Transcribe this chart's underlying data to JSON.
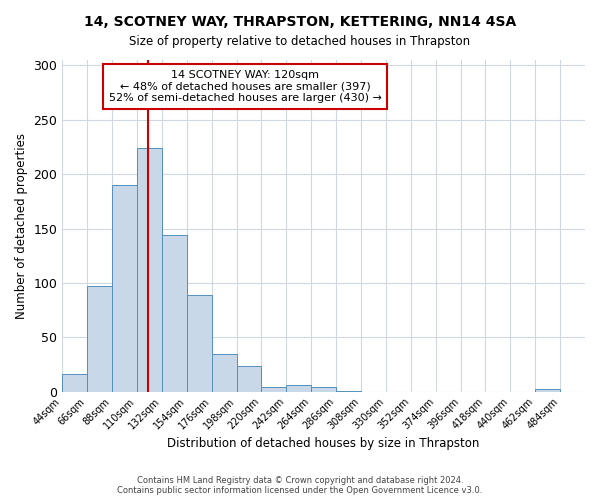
{
  "title": "14, SCOTNEY WAY, THRAPSTON, KETTERING, NN14 4SA",
  "subtitle": "Size of property relative to detached houses in Thrapston",
  "xlabel": "Distribution of detached houses by size in Thrapston",
  "ylabel": "Number of detached properties",
  "bar_color": "#c8d8e8",
  "bar_edge_color": "#5590bb",
  "vline_x": 120,
  "vline_color": "#cc0000",
  "annotation_title": "14 SCOTNEY WAY: 120sqm",
  "annotation_line2": "← 48% of detached houses are smaller (397)",
  "annotation_line3": "52% of semi-detached houses are larger (430) →",
  "annotation_box_color": "#cc0000",
  "footer_line1": "Contains HM Land Registry data © Crown copyright and database right 2024.",
  "footer_line2": "Contains public sector information licensed under the Open Government Licence v3.0.",
  "bin_edges": [
    44,
    66,
    88,
    110,
    132,
    154,
    176,
    198,
    220,
    242,
    264,
    286,
    308,
    330,
    352,
    374,
    396,
    418,
    440,
    462,
    484
  ],
  "bin_heights": [
    16,
    97,
    190,
    224,
    144,
    89,
    35,
    24,
    4,
    6,
    4,
    1,
    0,
    0,
    0,
    0,
    0,
    0,
    0,
    2
  ],
  "ylim": [
    0,
    305
  ],
  "xlim": [
    44,
    506
  ],
  "tick_labels": [
    "44sqm",
    "66sqm",
    "88sqm",
    "110sqm",
    "132sqm",
    "154sqm",
    "176sqm",
    "198sqm",
    "220sqm",
    "242sqm",
    "264sqm",
    "286sqm",
    "308sqm",
    "330sqm",
    "352sqm",
    "374sqm",
    "396sqm",
    "418sqm",
    "440sqm",
    "462sqm",
    "484sqm"
  ],
  "yticks": [
    0,
    50,
    100,
    150,
    200,
    250,
    300
  ],
  "background_color": "#ffffff",
  "grid_color": "#d0d8e0"
}
